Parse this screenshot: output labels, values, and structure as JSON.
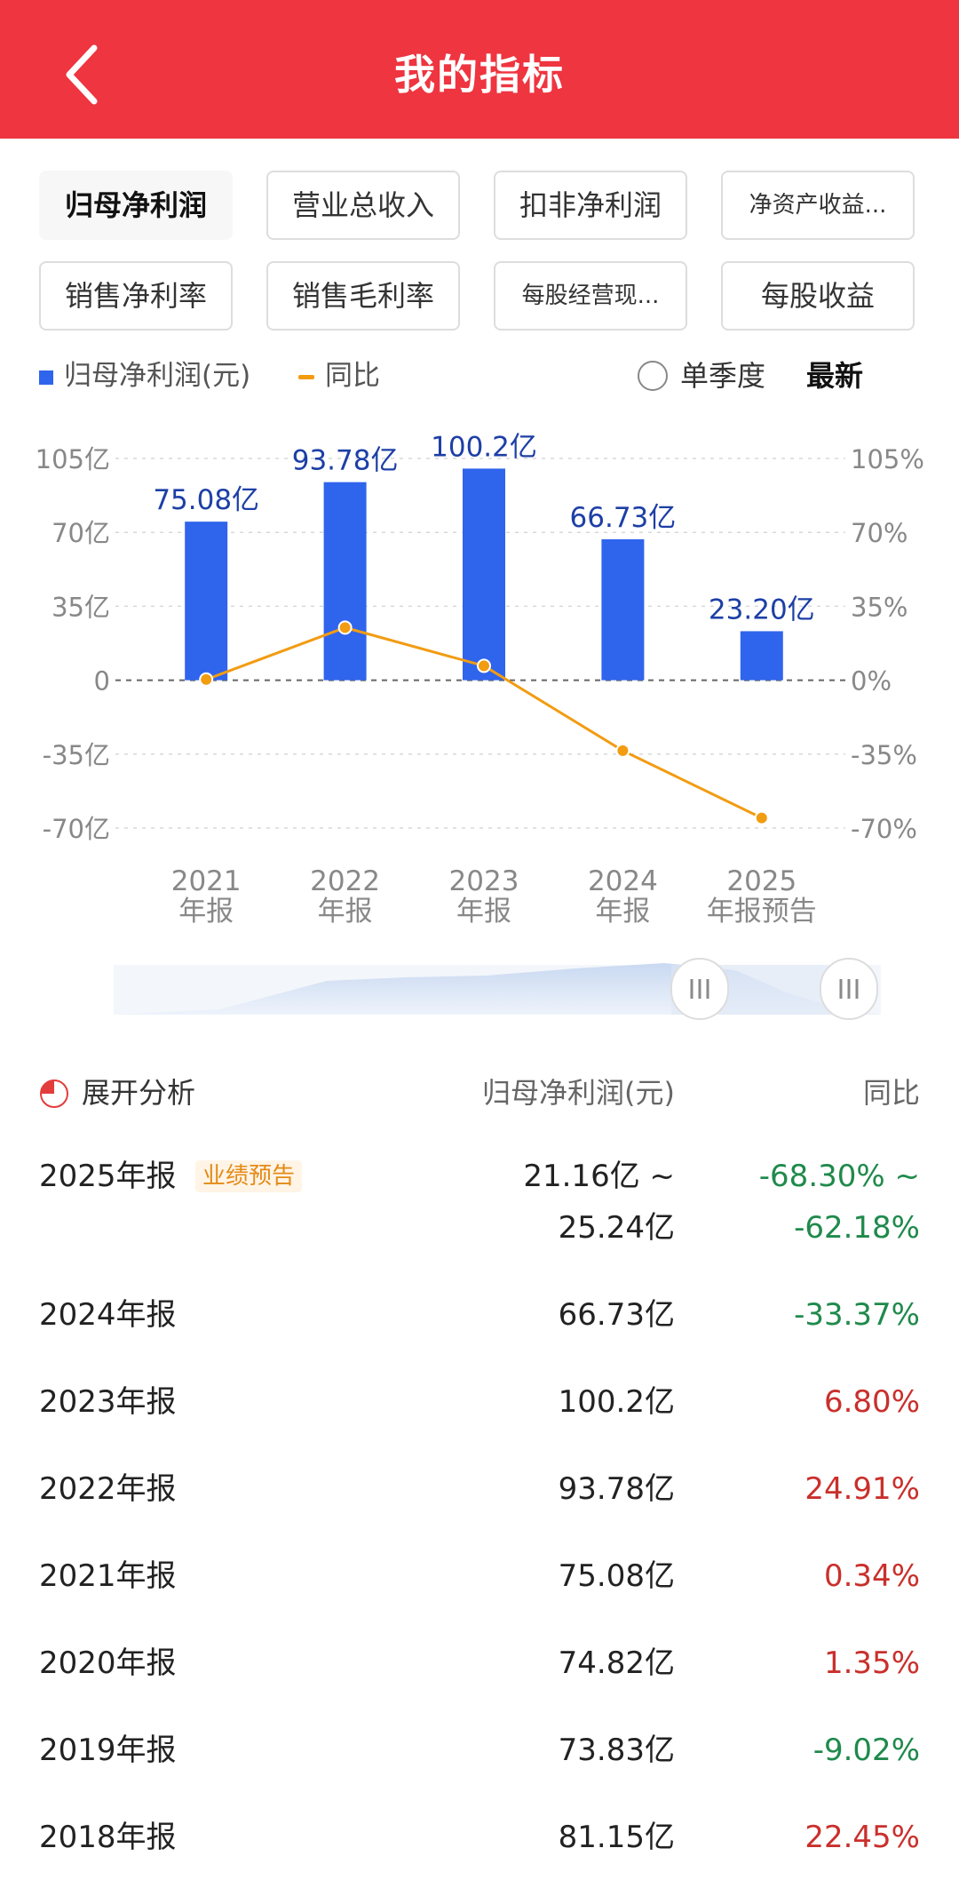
{
  "header": {
    "title": "我的指标",
    "back_icon": "chevron-left-icon",
    "background": "#ee3540"
  },
  "tabs": [
    {
      "label": "归母净利润",
      "active": true
    },
    {
      "label": "营业总收入",
      "active": false
    },
    {
      "label": "扣非净利润",
      "active": false
    },
    {
      "label": "净资产收益...",
      "active": false
    },
    {
      "label": "销售净利率",
      "active": false
    },
    {
      "label": "销售毛利率",
      "active": false
    },
    {
      "label": "每股经营现...",
      "active": false
    },
    {
      "label": "每股收益",
      "active": false
    }
  ],
  "legend": {
    "series1": "归母净利润(元)",
    "series2": "同比"
  },
  "toggle": {
    "label": "单季度",
    "latest": "最新"
  },
  "colors": {
    "bar": "#2f64ec",
    "line": "#f29c12",
    "positive": "#c9302c",
    "negative": "#1f8a4c",
    "accent": "#ee3540"
  },
  "chart_data": {
    "type": "bar",
    "categories": [
      [
        "2021",
        "年报"
      ],
      [
        "2022",
        "年报"
      ],
      [
        "2023",
        "年报"
      ],
      [
        "2024",
        "年报"
      ],
      [
        "2025",
        "年报预告"
      ]
    ],
    "series": [
      {
        "name": "归母净利润(元)",
        "type": "bar",
        "values": [
          75.08,
          93.78,
          100.2,
          66.73,
          23.2
        ],
        "labels": [
          "75.08亿",
          "93.78亿",
          "100.2亿",
          "66.73亿",
          "23.20亿"
        ]
      },
      {
        "name": "同比",
        "type": "line",
        "values": [
          0.34,
          24.91,
          6.8,
          -33.37,
          -65.2
        ]
      }
    ],
    "y_left": {
      "ticks": [
        "105亿",
        "70亿",
        "35亿",
        "0",
        "-35亿",
        "-70亿"
      ],
      "values": [
        105,
        70,
        35,
        0,
        -35,
        -70
      ],
      "range": [
        -70,
        105
      ]
    },
    "y_right": {
      "ticks": [
        "105%",
        "70%",
        "35%",
        "0%",
        "-35%",
        "-70%"
      ],
      "values": [
        105,
        70,
        35,
        0,
        -35,
        -70
      ],
      "range": [
        -70,
        105
      ]
    },
    "grid": true
  },
  "slider": {
    "handle_icon": "grip-lines-icon"
  },
  "table": {
    "expand_label": "展开分析",
    "expand_icon": "pie-chart-icon",
    "col_value": "归母净利润(元)",
    "col_yoy": "同比",
    "rows": [
      {
        "year": "2025年报",
        "badge": "业绩预告",
        "value": "21.16亿 ~",
        "value2": "25.24亿",
        "yoy": "-68.30% ~",
        "yoy2": "-62.18%",
        "sign": "neg"
      },
      {
        "year": "2024年报",
        "value": "66.73亿",
        "yoy": "-33.37%",
        "sign": "neg"
      },
      {
        "year": "2023年报",
        "value": "100.2亿",
        "yoy": "6.80%",
        "sign": "pos"
      },
      {
        "year": "2022年报",
        "value": "93.78亿",
        "yoy": "24.91%",
        "sign": "pos"
      },
      {
        "year": "2021年报",
        "value": "75.08亿",
        "yoy": "0.34%",
        "sign": "pos"
      },
      {
        "year": "2020年报",
        "value": "74.82亿",
        "yoy": "1.35%",
        "sign": "pos"
      },
      {
        "year": "2019年报",
        "value": "73.83亿",
        "yoy": "-9.02%",
        "sign": "neg"
      },
      {
        "year": "2018年报",
        "value": "81.15亿",
        "yoy": "22.45%",
        "sign": "pos"
      }
    ]
  }
}
